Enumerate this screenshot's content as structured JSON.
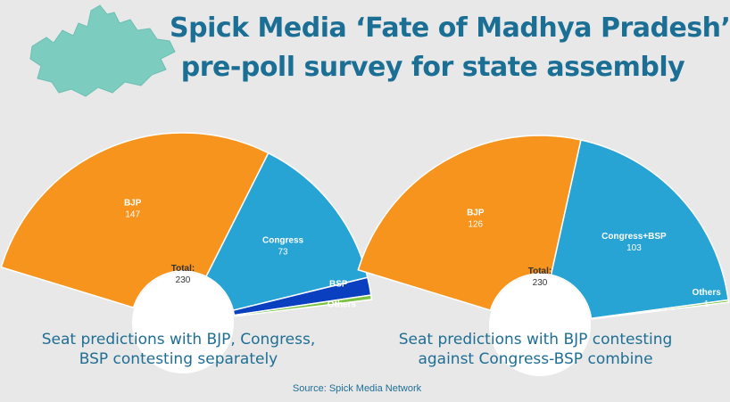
{
  "title": {
    "line1": "Spick Media ‘Fate of Madhya Pradesh’",
    "line2": "pre-poll survey for state assembly"
  },
  "colors": {
    "BJP": "#f7941d",
    "Congress": "#27a3d4",
    "Congress+BSP": "#27a3d4",
    "BSP": "#0a3fbf",
    "Others": "#7cc243",
    "title": "#1b6f95",
    "background": "#e8e8e8"
  },
  "chart_data": [
    {
      "type": "pie",
      "variant": "half-donut",
      "center_label": "Total:",
      "center_value": "230",
      "categories": [
        "BJP",
        "Congress",
        "BSP",
        "Others"
      ],
      "values": [
        147,
        73,
        8,
        2
      ],
      "data_labels": [
        "147",
        "73",
        "",
        ""
      ],
      "caption": "Seat predictions with BJP, Congress, BSP contesting separately"
    },
    {
      "type": "pie",
      "variant": "half-donut",
      "center_label": "Total:",
      "center_value": "230",
      "categories": [
        "BJP",
        "Congress+BSP",
        "Others"
      ],
      "values": [
        126,
        103,
        1
      ],
      "data_labels": [
        "126",
        "103",
        "1"
      ],
      "caption": "Seat predictions with BJP contesting against Congress-BSP combine"
    }
  ],
  "captions": {
    "left_line1": "Seat predictions with BJP, Congress,",
    "left_line2": "BSP contesting separately",
    "right_line1": "Seat predictions with BJP contesting",
    "right_line2": "against Congress-BSP combine"
  },
  "source": "Source: Spick Media Network"
}
